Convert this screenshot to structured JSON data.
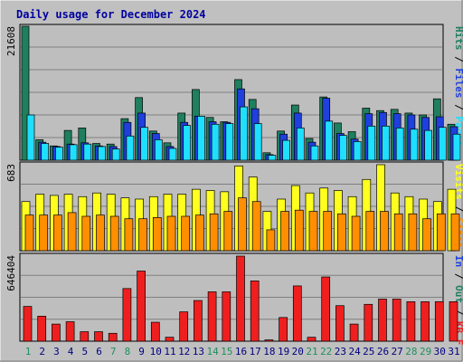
{
  "title": "Daily usage for December 2024",
  "colors": {
    "background": "#c0c0c0",
    "plot_background": "#bebebe",
    "title": "#0000a0",
    "hits": "#1f7f5f",
    "files": "#1f3fdf",
    "pages": "#1fdfff",
    "visits": "#ffff1f",
    "sites": "#ff8f00",
    "kbytes": "#ef1f1f",
    "weekend_label": "#1f8f5f",
    "weekday_label": "#000080"
  },
  "days": [
    "1",
    "2",
    "3",
    "4",
    "5",
    "6",
    "7",
    "8",
    "9",
    "10",
    "11",
    "12",
    "13",
    "14",
    "15",
    "16",
    "17",
    "18",
    "19",
    "20",
    "21",
    "22",
    "23",
    "24",
    "25",
    "26",
    "27",
    "28",
    "29",
    "30",
    "31"
  ],
  "weekend_days": [
    "1",
    "7",
    "8",
    "14",
    "15",
    "21",
    "22",
    "28",
    "29"
  ],
  "panels": {
    "hits": {
      "max_label": "21608",
      "legend": [
        {
          "text": "Hits",
          "color_key": "hits"
        },
        {
          "text": "Files",
          "color_key": "files"
        },
        {
          "text": "Pages",
          "color_key": "pages"
        }
      ]
    },
    "visits": {
      "max_label": "683",
      "legend": [
        {
          "text": "Visits",
          "color_key": "visits"
        },
        {
          "text": "Sites",
          "color_key": "sites"
        }
      ]
    },
    "kbytes": {
      "max_label": "646404",
      "legend": [
        {
          "text": "In",
          "color_key": "files"
        },
        {
          "text": "Out",
          "color_key": "hits"
        },
        {
          "text": "KB F",
          "color_key": "kbytes"
        }
      ]
    }
  },
  "chart_data": {
    "type": "bar",
    "categories": [
      "1",
      "2",
      "3",
      "4",
      "5",
      "6",
      "7",
      "8",
      "9",
      "10",
      "11",
      "12",
      "13",
      "14",
      "15",
      "16",
      "17",
      "18",
      "19",
      "20",
      "21",
      "22",
      "23",
      "24",
      "25",
      "26",
      "27",
      "28",
      "29",
      "30",
      "31"
    ],
    "series": [
      {
        "name": "Hits",
        "values": [
          21608,
          3300,
          2300,
          4800,
          5200,
          2700,
          2600,
          6700,
          10100,
          4700,
          2800,
          7600,
          11400,
          6900,
          6200,
          13000,
          9800,
          1200,
          4700,
          8900,
          3500,
          10200,
          6000,
          4600,
          8400,
          8000,
          8200,
          7600,
          7300,
          9900,
          5800
        ]
      },
      {
        "name": "Files",
        "values": [
          0,
          2900,
          2200,
          2600,
          2800,
          2300,
          2200,
          6100,
          7600,
          4300,
          2200,
          6100,
          7100,
          6200,
          6100,
          11500,
          8300,
          900,
          4200,
          7600,
          2900,
          10000,
          4300,
          3400,
          7500,
          7700,
          7500,
          7300,
          6900,
          7000,
          5400
        ]
      },
      {
        "name": "Pages",
        "values": [
          7300,
          2700,
          2100,
          2500,
          2600,
          2200,
          1800,
          3900,
          5300,
          3300,
          1900,
          5600,
          7100,
          5800,
          5900,
          8600,
          5900,
          800,
          3200,
          5200,
          2300,
          6300,
          4000,
          3000,
          5500,
          5500,
          5200,
          5000,
          4800,
          5300,
          4200
        ]
      },
      {
        "name": "Visits",
        "values": [
          400,
          460,
          450,
          460,
          440,
          470,
          460,
          430,
          420,
          440,
          460,
          460,
          500,
          490,
          480,
          690,
          600,
          320,
          420,
          530,
          470,
          510,
          490,
          440,
          580,
          700,
          470,
          440,
          420,
          400,
          500
        ]
      },
      {
        "name": "Sites",
        "values": [
          290,
          290,
          290,
          310,
          280,
          290,
          280,
          260,
          260,
          270,
          280,
          280,
          290,
          300,
          320,
          430,
          400,
          170,
          320,
          330,
          320,
          320,
          300,
          280,
          320,
          320,
          300,
          300,
          260,
          300,
          300
        ]
      },
      {
        "name": "KBytes",
        "values": [
          264000,
          190000,
          130000,
          148000,
          72000,
          72000,
          60000,
          400000,
          533000,
          144000,
          30000,
          223000,
          309000,
          375000,
          375000,
          646404,
          458000,
          10000,
          180000,
          420000,
          30000,
          488000,
          270000,
          130000,
          280000,
          320000,
          320000,
          300000,
          300000,
          300000,
          300000
        ]
      }
    ]
  }
}
